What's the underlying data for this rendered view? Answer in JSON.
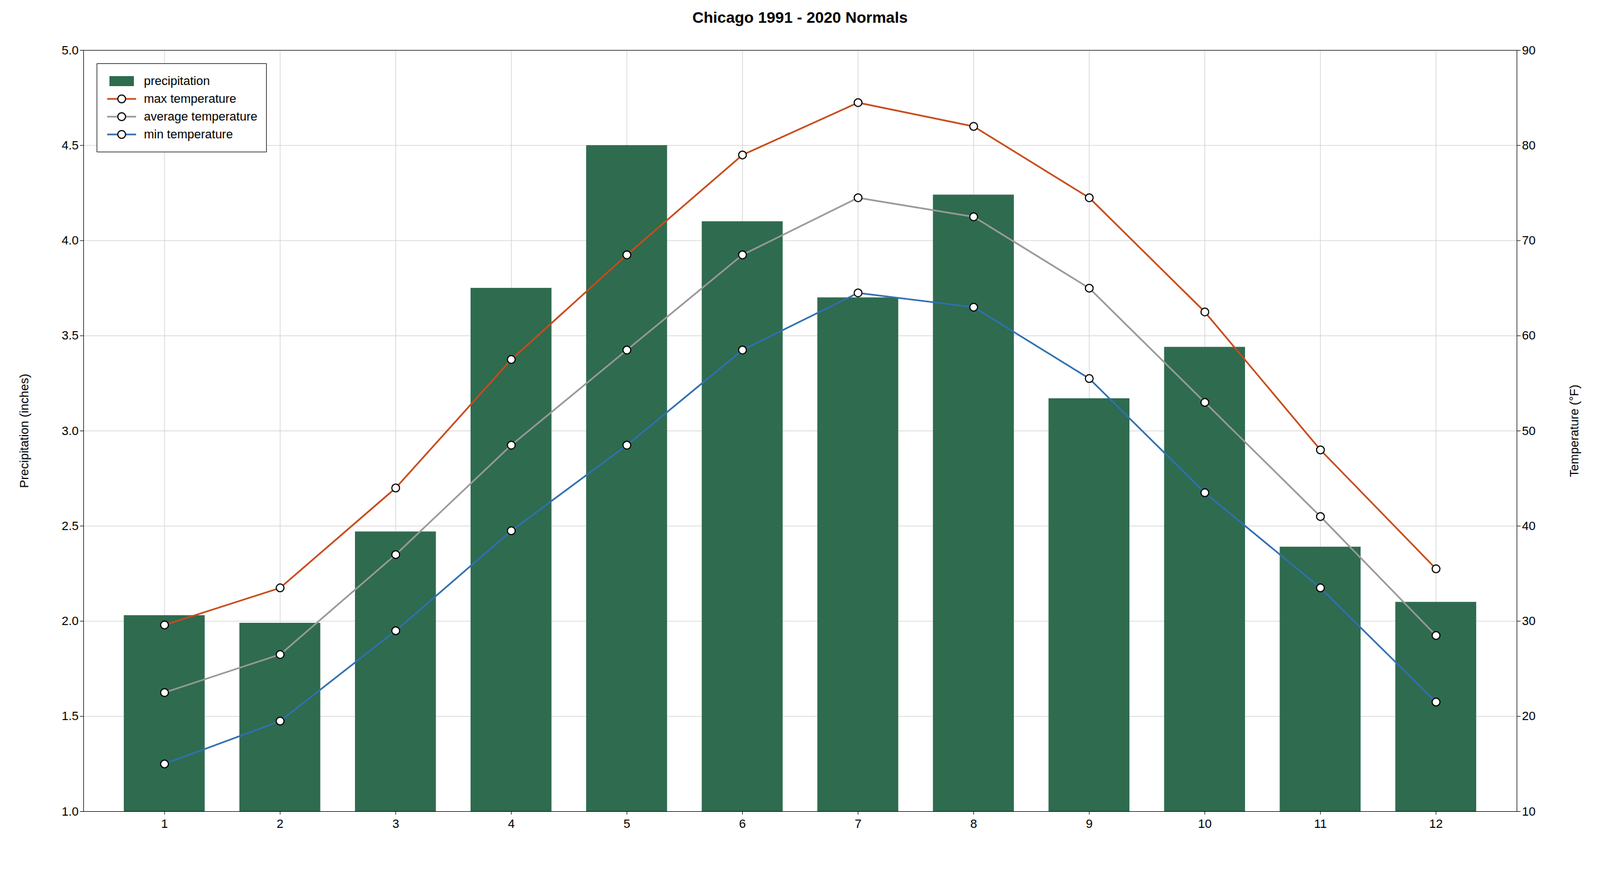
{
  "chart_data": {
    "type": "bar",
    "title": "Chicago 1991 - 2020 Normals",
    "x": [
      1,
      2,
      3,
      4,
      5,
      6,
      7,
      8,
      9,
      10,
      11,
      12
    ],
    "xlim": [
      0.3,
      12.7
    ],
    "xticks": [
      1,
      2,
      3,
      4,
      5,
      6,
      7,
      8,
      9,
      10,
      11,
      12
    ],
    "ylabel": "Precipitation (inches)",
    "ylim": [
      1.0,
      5.0
    ],
    "yticks": [
      {
        "value": 1.0,
        "label": "1.0"
      },
      {
        "value": 1.5,
        "label": "1.5"
      },
      {
        "value": 2.0,
        "label": "2.0"
      },
      {
        "value": 2.5,
        "label": "2.5"
      },
      {
        "value": 3.0,
        "label": "3.0"
      },
      {
        "value": 3.5,
        "label": "3.5"
      },
      {
        "value": 4.0,
        "label": "4.0"
      },
      {
        "value": 4.5,
        "label": "4.5"
      },
      {
        "value": 5.0,
        "label": "5.0"
      }
    ],
    "y2label": "Temperature (°F)",
    "y2lim": [
      10,
      90
    ],
    "y2ticks": [
      10,
      20,
      30,
      40,
      50,
      60,
      70,
      80,
      90
    ],
    "grid": true,
    "legend": "upper left",
    "series": [
      {
        "name": "precipitation",
        "type": "bar",
        "color": "#2E6B4F",
        "values": [
          2.03,
          1.99,
          2.47,
          3.75,
          4.5,
          4.1,
          3.7,
          4.24,
          3.17,
          3.44,
          2.39,
          2.1
        ]
      },
      {
        "name": "max temperature",
        "type": "line",
        "axis": "y2",
        "color": "#C84B1A",
        "marker": "circle",
        "values": [
          29.6,
          33.5,
          44.0,
          57.5,
          68.5,
          79.0,
          84.5,
          82.0,
          74.5,
          62.5,
          48.0,
          35.5
        ]
      },
      {
        "name": "average temperature",
        "type": "line",
        "axis": "y2",
        "color": "#999999",
        "marker": "circle",
        "values": [
          22.5,
          26.5,
          37.0,
          48.5,
          58.5,
          68.5,
          74.5,
          72.5,
          65.0,
          53.0,
          41.0,
          28.5
        ]
      },
      {
        "name": "min temperature",
        "type": "line",
        "axis": "y2",
        "color": "#3070B0",
        "marker": "circle",
        "values": [
          15.0,
          19.5,
          29.0,
          39.5,
          48.5,
          58.5,
          64.5,
          63.0,
          55.5,
          43.5,
          33.5,
          21.5
        ]
      }
    ]
  }
}
